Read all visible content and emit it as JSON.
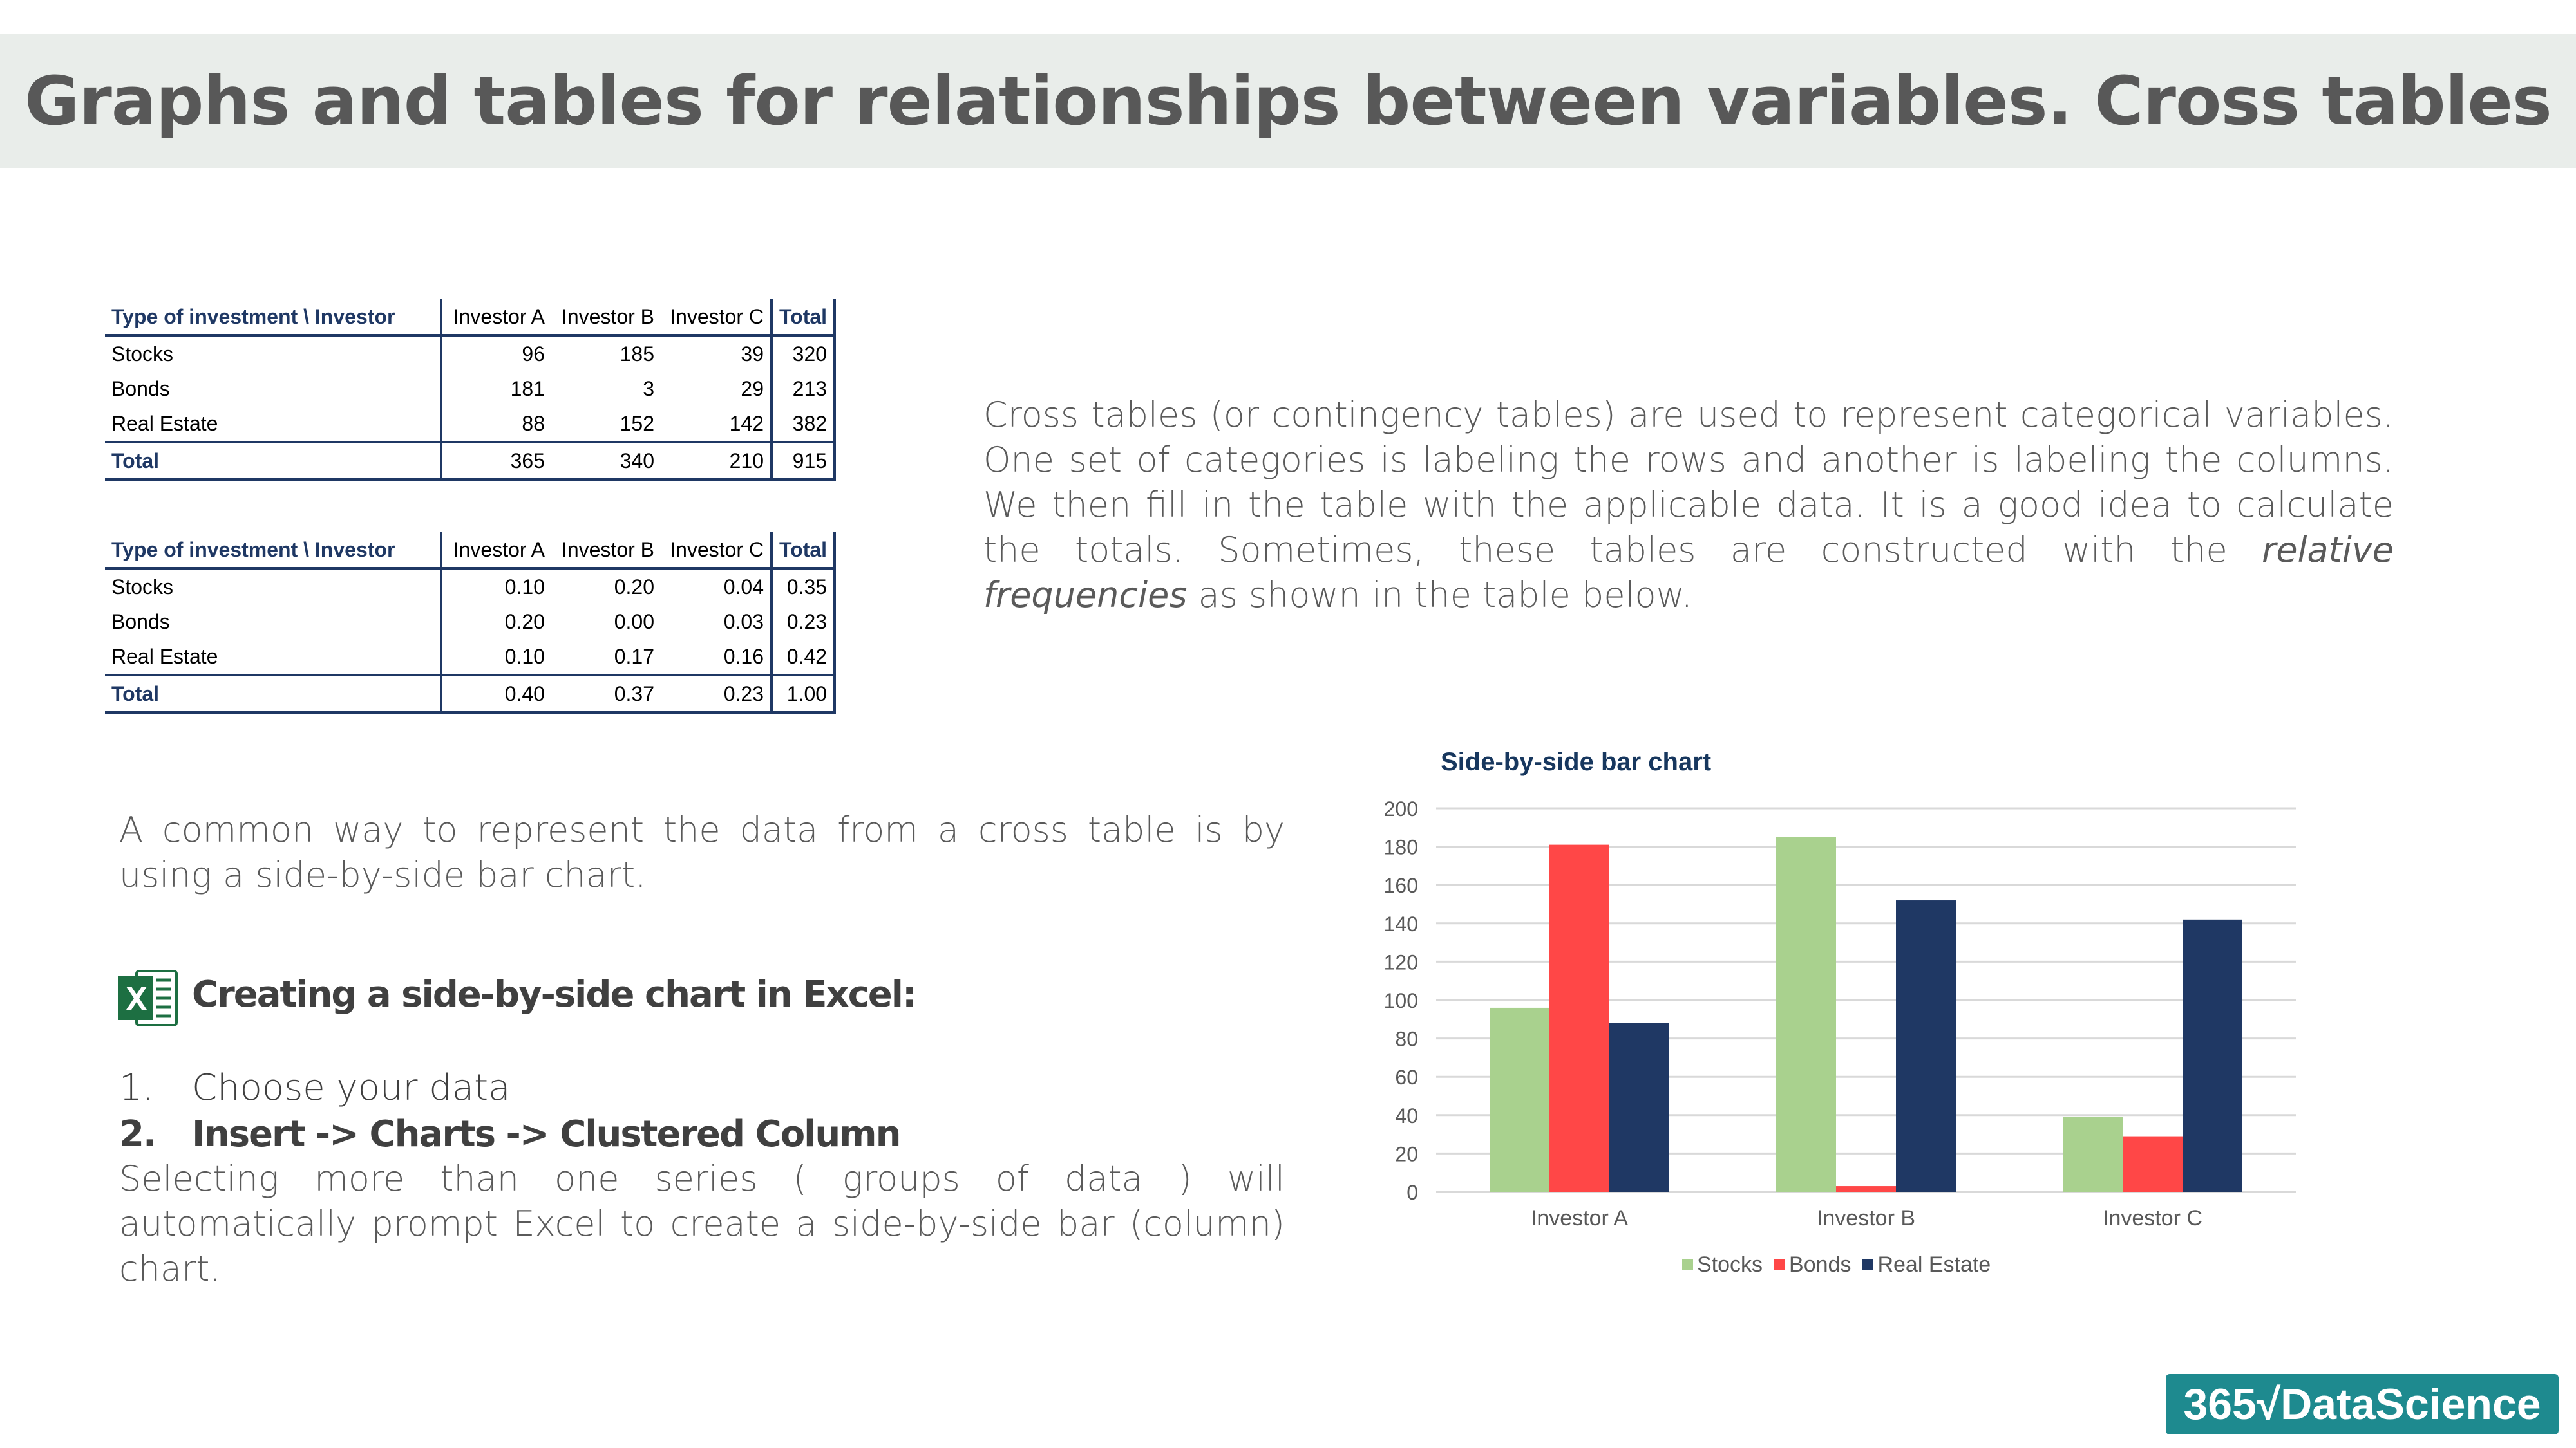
{
  "title": "Graphs and tables for relationships between variables. Cross tables",
  "table_counts": {
    "header": [
      "Type of investment \\ Investor",
      "Investor A",
      "Investor B",
      "Investor C",
      "Total"
    ],
    "rows": [
      [
        "Stocks",
        "96",
        "185",
        "39",
        "320"
      ],
      [
        "Bonds",
        "181",
        "3",
        "29",
        "213"
      ],
      [
        "Real Estate",
        "88",
        "152",
        "142",
        "382"
      ]
    ],
    "total_row": [
      "Total",
      "365",
      "340",
      "210",
      "915"
    ]
  },
  "table_relative": {
    "header": [
      "Type of investment \\ Investor",
      "Investor A",
      "Investor B",
      "Investor C",
      "Total"
    ],
    "rows": [
      [
        "Stocks",
        "0.10",
        "0.20",
        "0.04",
        "0.35"
      ],
      [
        "Bonds",
        "0.20",
        "0.00",
        "0.03",
        "0.23"
      ],
      [
        "Real Estate",
        "0.10",
        "0.17",
        "0.16",
        "0.42"
      ]
    ],
    "total_row": [
      "Total",
      "0.40",
      "0.37",
      "0.23",
      "1.00"
    ]
  },
  "intro": {
    "text_before": "Cross tables (or contingency tables) are used to represent categorical variables. One set of categories is labeling the rows and another is labeling the columns. We then fill in the table with the applicable data. It is a good idea to calculate the totals. Sometimes, these tables are constructed with the ",
    "emphasis": "relative frequencies",
    "text_after": " as shown in the table below."
  },
  "common_way": "A common way to represent the data from a cross table is by using a side-by-side bar chart.",
  "excel": {
    "icon": "excel-icon",
    "heading": "Creating a side-by-side chart in Excel:",
    "steps": [
      {
        "num": "1.",
        "text": "Choose your data"
      },
      {
        "num": "2.",
        "text": "Insert -> Charts -> Clustered Column"
      }
    ],
    "note": "Selecting more than one series ( groups of data ) will automatically prompt Excel to create a side-by-side bar (column) chart."
  },
  "chart_data": {
    "type": "bar",
    "title": "Side-by-side bar chart",
    "categories": [
      "Investor A",
      "Investor B",
      "Investor C"
    ],
    "series": [
      {
        "name": "Stocks",
        "values": [
          96,
          185,
          39
        ],
        "color": "#a9d18e"
      },
      {
        "name": "Bonds",
        "values": [
          181,
          3,
          29
        ],
        "color": "#ff4747"
      },
      {
        "name": "Real Estate",
        "values": [
          88,
          152,
          142
        ],
        "color": "#1f3864"
      }
    ],
    "ylim": [
      0,
      200
    ],
    "yticks": [
      "0",
      "20",
      "40",
      "60",
      "80",
      "100",
      "120",
      "140",
      "160",
      "180",
      "200"
    ],
    "grid": true,
    "legend": "bottom"
  },
  "logo": "365√DataScience"
}
